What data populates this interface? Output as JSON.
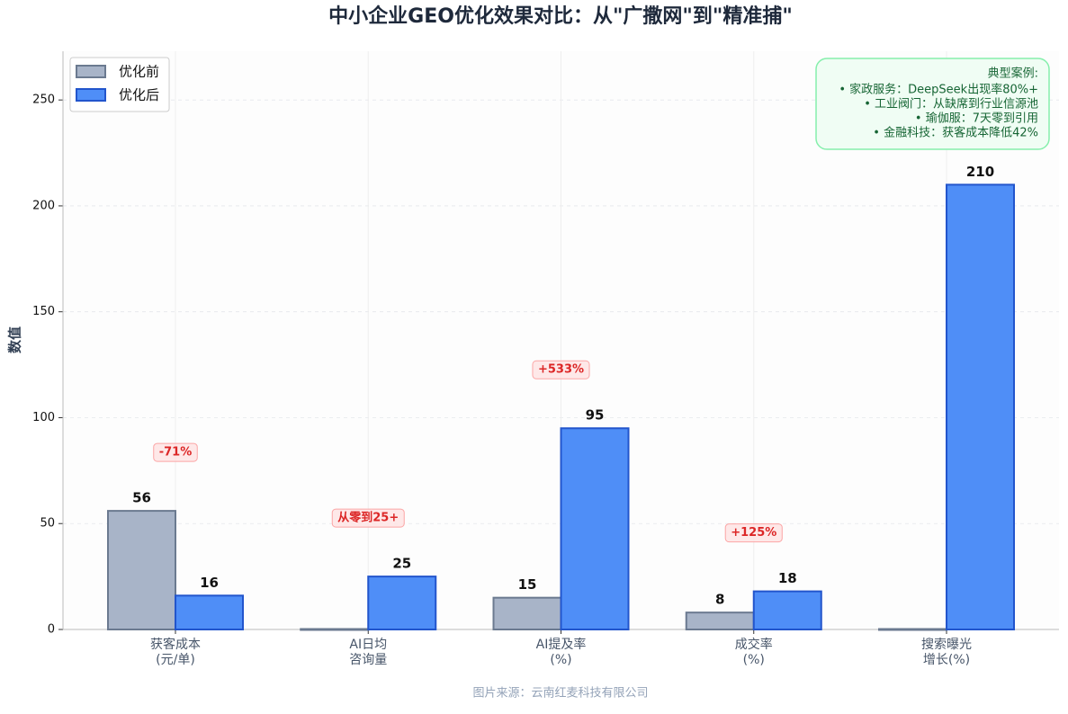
{
  "chart_data": {
    "type": "bar",
    "title": "中小企业GEO优化效果对比：从\"广撒网\"到\"精准捕\"",
    "y_label": "数值",
    "categories": [
      "获客成本\n(元/单)",
      "AI日均\n咨询量",
      "AI提及率\n(%)",
      "成交率\n(%)",
      "搜索曝光\n增长(%)"
    ],
    "series": [
      {
        "name": "优化前",
        "color": "#a8b4c8",
        "edge_color": "#6b7a90",
        "values": [
          56,
          0,
          15,
          8,
          0
        ],
        "value_labels": [
          "56",
          null,
          "15",
          "8",
          null
        ]
      },
      {
        "name": "优化后",
        "color": "#4f8ef7",
        "edge_color": "#2255cc",
        "values": [
          16,
          25,
          95,
          18,
          210
        ],
        "value_labels": [
          "16",
          "25",
          "95",
          "18",
          "210"
        ]
      }
    ],
    "annotations": [
      "-71%",
      "从零到25+",
      "+533%",
      "+125%",
      null
    ],
    "ylim": [
      0,
      273
    ],
    "yticks": [
      0,
      50,
      100,
      150,
      200,
      250
    ],
    "grid": true,
    "legend": "upper-left",
    "case_box": {
      "title": "典型案例:",
      "lines": [
        "• 家政服务：DeepSeek出现率80%+",
        "• 工业阀门：从缺席到行业信源池",
        "• 瑜伽服：7天零到引用",
        "• 金融科技：获客成本降低42%"
      ]
    },
    "source": "图片来源：云南红麦科技有限公司"
  }
}
